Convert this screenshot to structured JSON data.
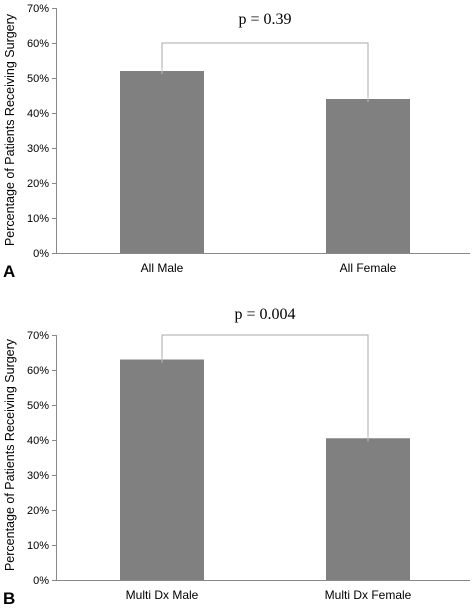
{
  "chart_data": [
    {
      "type": "bar",
      "panel_label": "A",
      "categories": [
        "All Male",
        "All Female"
      ],
      "values": [
        52,
        44
      ],
      "ylabel": "Percentage of Patients Receiving Surgery",
      "ylim": [
        0,
        70
      ],
      "yticks": [
        "0%",
        "10%",
        "20%",
        "30%",
        "40%",
        "50%",
        "60%",
        "70%"
      ],
      "annotation": "p = 0.39",
      "bar_color": "#808080",
      "grid": false,
      "legend": "none"
    },
    {
      "type": "bar",
      "panel_label": "B",
      "categories": [
        "Multi Dx Male",
        "Multi Dx Female"
      ],
      "values": [
        63,
        40.5
      ],
      "ylabel": "Percentage of Patients Receiving Surgery",
      "ylim": [
        0,
        70
      ],
      "yticks": [
        "0%",
        "10%",
        "20%",
        "30%",
        "40%",
        "50%",
        "60%",
        "70%"
      ],
      "annotation": "p = 0.004",
      "bar_color": "#808080",
      "grid": false,
      "legend": "none"
    }
  ]
}
